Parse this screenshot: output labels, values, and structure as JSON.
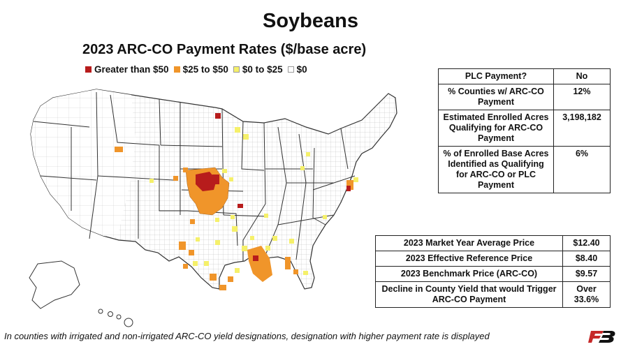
{
  "title": "Soybeans",
  "subtitle": "2023 ARC-CO Payment Rates ($/base acre)",
  "legend": [
    {
      "label": "Greater than $50",
      "color": "#b71c1c"
    },
    {
      "label": "$25 to $50",
      "color": "#f0952a"
    },
    {
      "label": "$0 to $25",
      "color": "#f5f06a"
    },
    {
      "label": "$0",
      "color": "#ffffff"
    }
  ],
  "top_table": {
    "rows": [
      {
        "label": "PLC Payment?",
        "value": "No"
      },
      {
        "label": "% Counties w/ ARC-CO Payment",
        "value": "12%"
      },
      {
        "label": "Estimated Enrolled Acres Qualifying for ARC-CO Payment",
        "value": "3,198,182"
      },
      {
        "label": "% of Enrolled Base Acres Identified as Qualifying for ARC-CO or PLC Payment",
        "value": "6%"
      }
    ]
  },
  "bottom_table": {
    "rows": [
      {
        "label": "2023 Market Year Average Price",
        "value": "$12.40"
      },
      {
        "label": "2023 Effective Reference Price",
        "value": "$8.40"
      },
      {
        "label": "2023 Benchmark Price (ARC-CO)",
        "value": "$9.57"
      },
      {
        "label": "Decline in County Yield that would Trigger ARC-CO Payment",
        "value": "Over 33.6%"
      }
    ]
  },
  "footnote": "In counties with irrigated and non-irrigated ARC-CO yield designations, designation with higher payment rate is displayed",
  "logo": "FB",
  "colors": {
    "high": "#b71c1c",
    "mid": "#f0952a",
    "low": "#f5f06a",
    "zero": "#ffffff",
    "border": "#555555"
  }
}
